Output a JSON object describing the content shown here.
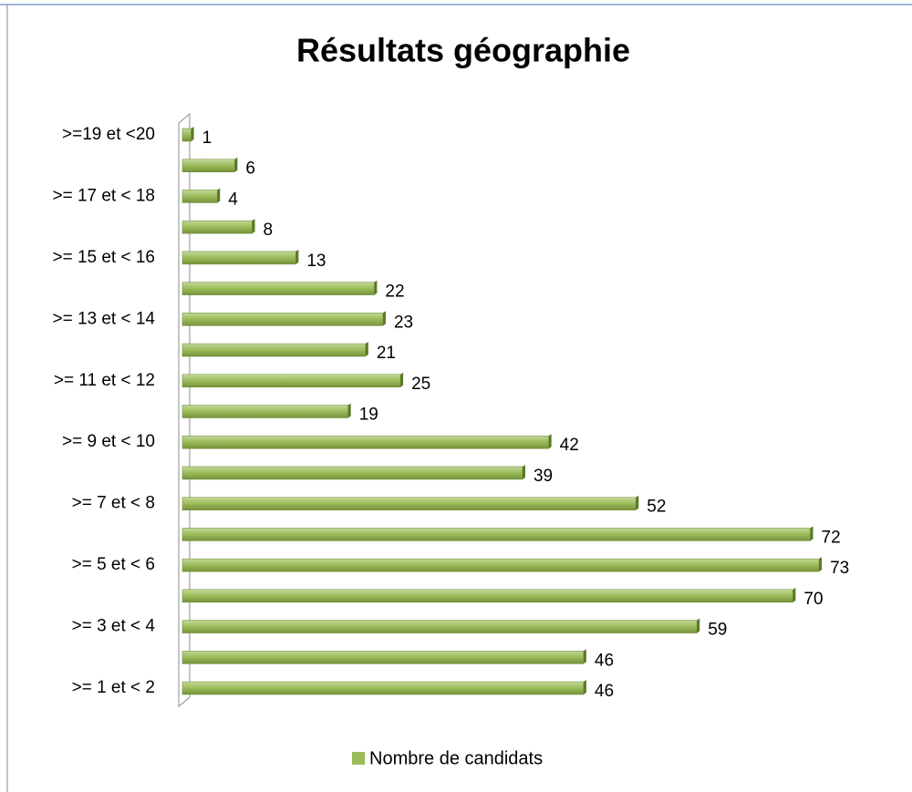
{
  "chart_data": {
    "type": "bar",
    "orientation": "horizontal",
    "title": "Résultats géographie",
    "categories": [
      ">= 1 et < 2",
      null,
      ">= 3 et < 4",
      null,
      ">= 5 et < 6",
      null,
      ">= 7 et < 8",
      null,
      ">= 9 et < 10",
      null,
      ">= 11 et < 12",
      null,
      ">= 13 et < 14",
      null,
      ">= 15 et < 16",
      null,
      ">= 17 et < 18",
      null,
      ">=19 et <20"
    ],
    "series": [
      {
        "name": "Nombre de candidats",
        "color": "#9bbb59",
        "values": [
          46,
          46,
          59,
          70,
          73,
          72,
          52,
          39,
          42,
          19,
          25,
          21,
          23,
          22,
          13,
          8,
          4,
          6,
          1
        ]
      }
    ],
    "xlim": [
      0,
      80
    ],
    "legend": "bottom"
  }
}
